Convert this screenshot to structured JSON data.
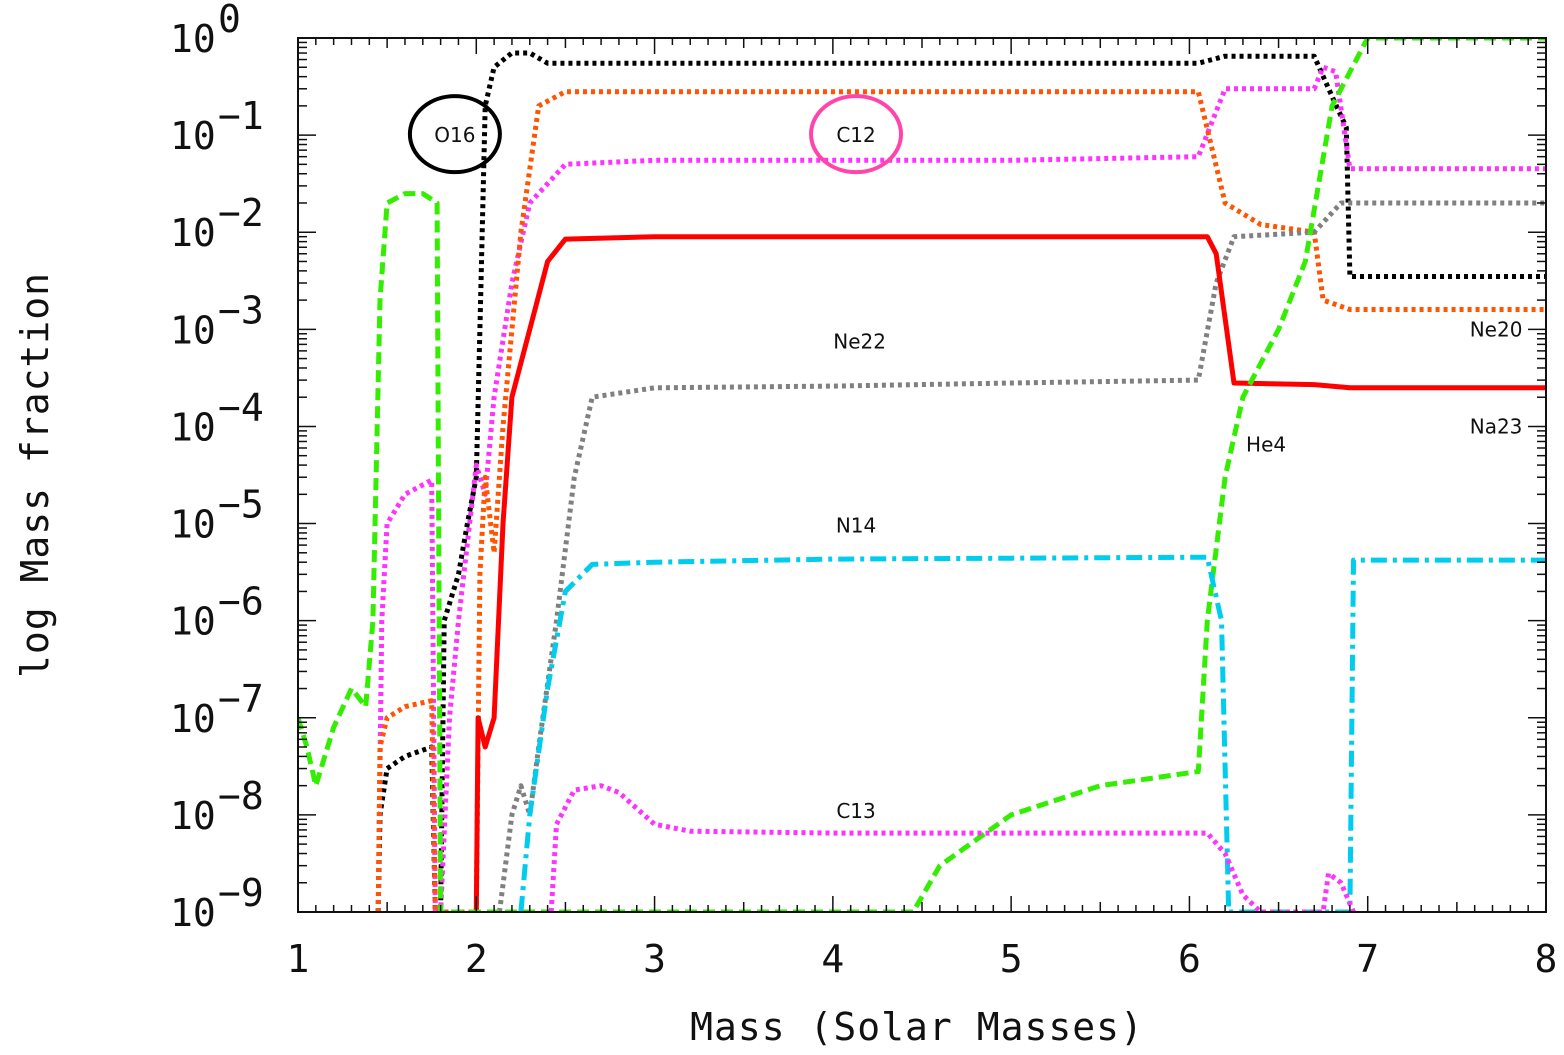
{
  "chart_data": {
    "type": "line",
    "xlabel": "Mass (Solar Masses)",
    "ylabel": "log Mass fraction",
    "xlim": [
      1,
      8
    ],
    "ylim": [
      1e-09,
      1
    ],
    "y_scale": "log",
    "x_ticks": [
      "1",
      "2",
      "3",
      "4",
      "5",
      "6",
      "7",
      "8"
    ],
    "y_tick_bases": [
      "10",
      "10",
      "10",
      "10",
      "10",
      "10",
      "10",
      "10",
      "10",
      "10"
    ],
    "y_tick_exponents": [
      "0",
      "−1",
      "−2",
      "−3",
      "−4",
      "−5",
      "−6",
      "−7",
      "−8",
      "−9"
    ],
    "grid": false,
    "series": [
      {
        "name": "O16",
        "color": "#000000",
        "style": "dotted",
        "points": [
          [
            1.45,
            1e-09
          ],
          [
            1.46,
            1e-08
          ],
          [
            1.5,
            3e-08
          ],
          [
            1.6,
            4e-08
          ],
          [
            1.75,
            5e-08
          ],
          [
            1.77,
            1e-09
          ],
          [
            1.8,
            1e-09
          ],
          [
            1.82,
            1e-06
          ],
          [
            1.9,
            3e-06
          ],
          [
            1.95,
            1e-05
          ],
          [
            2.0,
            3e-05
          ],
          [
            2.02,
            0.001
          ],
          [
            2.05,
            0.2
          ],
          [
            2.1,
            0.5
          ],
          [
            2.2,
            0.7
          ],
          [
            2.3,
            0.7
          ],
          [
            2.4,
            0.55
          ],
          [
            3.0,
            0.55
          ],
          [
            4.0,
            0.55
          ],
          [
            5.0,
            0.55
          ],
          [
            6.05,
            0.55
          ],
          [
            6.2,
            0.65
          ],
          [
            6.7,
            0.65
          ],
          [
            6.8,
            0.25
          ],
          [
            6.88,
            0.12
          ],
          [
            6.9,
            0.0035
          ],
          [
            7.2,
            0.0035
          ],
          [
            8.0,
            0.0035
          ]
        ]
      },
      {
        "name": "C12",
        "color": "#ff33ff",
        "style": "dotted",
        "points": [
          [
            1.45,
            1e-09
          ],
          [
            1.47,
            1e-06
          ],
          [
            1.5,
            1e-05
          ],
          [
            1.6,
            2e-05
          ],
          [
            1.75,
            2.8e-05
          ],
          [
            1.77,
            1e-09
          ],
          [
            1.8,
            1e-09
          ],
          [
            1.85,
            1e-07
          ],
          [
            1.9,
            1e-06
          ],
          [
            2.0,
            4e-05
          ],
          [
            2.05,
            2e-05
          ],
          [
            2.1,
            0.0002
          ],
          [
            2.2,
            0.003
          ],
          [
            2.3,
            0.02
          ],
          [
            2.5,
            0.05
          ],
          [
            3.0,
            0.055
          ],
          [
            4.0,
            0.055
          ],
          [
            5.0,
            0.055
          ],
          [
            6.05,
            0.06
          ],
          [
            6.2,
            0.3
          ],
          [
            6.7,
            0.3
          ],
          [
            6.75,
            0.5
          ],
          [
            6.82,
            0.45
          ],
          [
            6.9,
            0.045
          ],
          [
            7.5,
            0.045
          ],
          [
            8.0,
            0.045
          ]
        ]
      },
      {
        "name": "C12 orange",
        "color": "#ff5500",
        "style": "dotted",
        "points": [
          [
            1.45,
            1e-09
          ],
          [
            1.46,
            5e-08
          ],
          [
            1.5,
            1e-07
          ],
          [
            1.6,
            1.3e-07
          ],
          [
            1.75,
            1.5e-07
          ],
          [
            1.77,
            1e-09
          ],
          [
            1.8,
            1e-09
          ],
          [
            2.0,
            1e-09
          ],
          [
            2.02,
            3e-06
          ],
          [
            2.05,
            3e-05
          ],
          [
            2.1,
            5e-06
          ],
          [
            2.15,
            0.0001
          ],
          [
            2.25,
            0.01
          ],
          [
            2.35,
            0.2
          ],
          [
            2.5,
            0.28
          ],
          [
            3.0,
            0.28
          ],
          [
            4.0,
            0.28
          ],
          [
            5.0,
            0.28
          ],
          [
            6.05,
            0.28
          ],
          [
            6.2,
            0.02
          ],
          [
            6.4,
            0.012
          ],
          [
            6.7,
            0.01
          ],
          [
            6.75,
            0.002
          ],
          [
            6.9,
            0.0016
          ],
          [
            8.0,
            0.0016
          ]
        ]
      },
      {
        "name": "Ne20",
        "color": "#808080",
        "style": "dotted",
        "points": [
          [
            2.13,
            1e-09
          ],
          [
            2.2,
            1e-08
          ],
          [
            2.25,
            2e-08
          ],
          [
            2.3,
            1e-08
          ],
          [
            2.35,
            5e-08
          ],
          [
            2.45,
            1e-06
          ],
          [
            2.55,
            3e-05
          ],
          [
            2.65,
            0.0002
          ],
          [
            3.0,
            0.00025
          ],
          [
            4.0,
            0.00026
          ],
          [
            5.0,
            0.00028
          ],
          [
            6.05,
            0.0003
          ],
          [
            6.15,
            0.003
          ],
          [
            6.25,
            0.009
          ],
          [
            6.7,
            0.01
          ],
          [
            6.85,
            0.02
          ],
          [
            8.0,
            0.02
          ]
        ]
      },
      {
        "name": "Na23",
        "color": "#ff0000",
        "style": "solid",
        "points": [
          [
            2.0,
            1e-09
          ],
          [
            2.01,
            1e-07
          ],
          [
            2.05,
            5e-08
          ],
          [
            2.1,
            1e-07
          ],
          [
            2.15,
            1e-05
          ],
          [
            2.2,
            0.0002
          ],
          [
            2.3,
            0.001
          ],
          [
            2.4,
            0.005
          ],
          [
            2.5,
            0.0085
          ],
          [
            3.0,
            0.009
          ],
          [
            4.0,
            0.009
          ],
          [
            5.0,
            0.009
          ],
          [
            6.1,
            0.009
          ],
          [
            6.15,
            0.006
          ],
          [
            6.25,
            0.00028
          ],
          [
            6.7,
            0.00027
          ],
          [
            6.9,
            0.00025
          ],
          [
            8.0,
            0.00025
          ]
        ]
      },
      {
        "name": "He4",
        "color": "#33ee00",
        "style": "dashed",
        "points": [
          [
            1.0,
            1e-07
          ],
          [
            1.05,
            5e-08
          ],
          [
            1.1,
            2e-08
          ],
          [
            1.2,
            8e-08
          ],
          [
            1.3,
            2e-07
          ],
          [
            1.38,
            1.3e-07
          ],
          [
            1.42,
            1e-06
          ],
          [
            1.46,
            0.002
          ],
          [
            1.5,
            0.02
          ],
          [
            1.6,
            0.025
          ],
          [
            1.7,
            0.025
          ],
          [
            1.78,
            0.02
          ],
          [
            1.8,
            1e-09
          ],
          [
            4.45,
            1e-09
          ],
          [
            4.6,
            3e-09
          ],
          [
            5.0,
            1e-08
          ],
          [
            5.5,
            2e-08
          ],
          [
            6.05,
            2.8e-08
          ],
          [
            6.1,
            1e-06
          ],
          [
            6.2,
            3e-05
          ],
          [
            6.3,
            0.0002
          ],
          [
            6.5,
            0.001
          ],
          [
            6.65,
            0.005
          ],
          [
            6.8,
            0.2
          ],
          [
            7.0,
            1.0
          ],
          [
            8.0,
            1.0
          ]
        ]
      },
      {
        "name": "N14",
        "color": "#00ccee",
        "style": "dashdot",
        "points": [
          [
            2.25,
            1e-09
          ],
          [
            2.3,
            1e-08
          ],
          [
            2.4,
            2e-07
          ],
          [
            2.5,
            2e-06
          ],
          [
            2.65,
            3.8e-06
          ],
          [
            3.0,
            4e-06
          ],
          [
            4.0,
            4.3e-06
          ],
          [
            5.0,
            4.4e-06
          ],
          [
            6.1,
            4.5e-06
          ],
          [
            6.18,
            1e-06
          ],
          [
            6.22,
            1e-09
          ],
          [
            6.9,
            1e-09
          ],
          [
            6.92,
            4.2e-06
          ],
          [
            8.0,
            4.2e-06
          ]
        ]
      },
      {
        "name": "C13",
        "color": "#ff33ff",
        "style": "dotted",
        "points": [
          [
            2.42,
            1e-09
          ],
          [
            2.45,
            8e-09
          ],
          [
            2.55,
            1.8e-08
          ],
          [
            2.7,
            2e-08
          ],
          [
            2.8,
            1.7e-08
          ],
          [
            3.0,
            8e-09
          ],
          [
            3.2,
            6.8e-09
          ],
          [
            4.0,
            6.5e-09
          ],
          [
            5.0,
            6.5e-09
          ],
          [
            6.1,
            6.5e-09
          ],
          [
            6.2,
            4e-09
          ],
          [
            6.3,
            1.5e-09
          ],
          [
            6.4,
            1e-09
          ],
          [
            6.75,
            1e-09
          ],
          [
            6.78,
            2.5e-09
          ],
          [
            6.85,
            2e-09
          ],
          [
            6.92,
            1e-09
          ]
        ]
      }
    ],
    "annotations": [
      {
        "text": "O16",
        "x": 1.88,
        "y": 0.1,
        "circled": true,
        "circle_color": "#000000"
      },
      {
        "text": "C12",
        "x": 4.13,
        "y": 0.1,
        "circled": true,
        "circle_color": "#ff44aa"
      },
      {
        "text": "Ne22",
        "x": 4.15,
        "y": 0.00075,
        "circled": false
      },
      {
        "text": "N14",
        "x": 4.13,
        "y": 9.5e-06,
        "circled": false
      },
      {
        "text": "C13",
        "x": 4.13,
        "y": 1.1e-08,
        "circled": false
      },
      {
        "text": "He4",
        "x": 6.43,
        "y": 6.5e-05,
        "circled": false
      },
      {
        "text": "Ne20",
        "x": 7.72,
        "y": 0.001,
        "circled": false
      },
      {
        "text": "Na23",
        "x": 7.72,
        "y": 0.0001,
        "circled": false
      }
    ]
  }
}
